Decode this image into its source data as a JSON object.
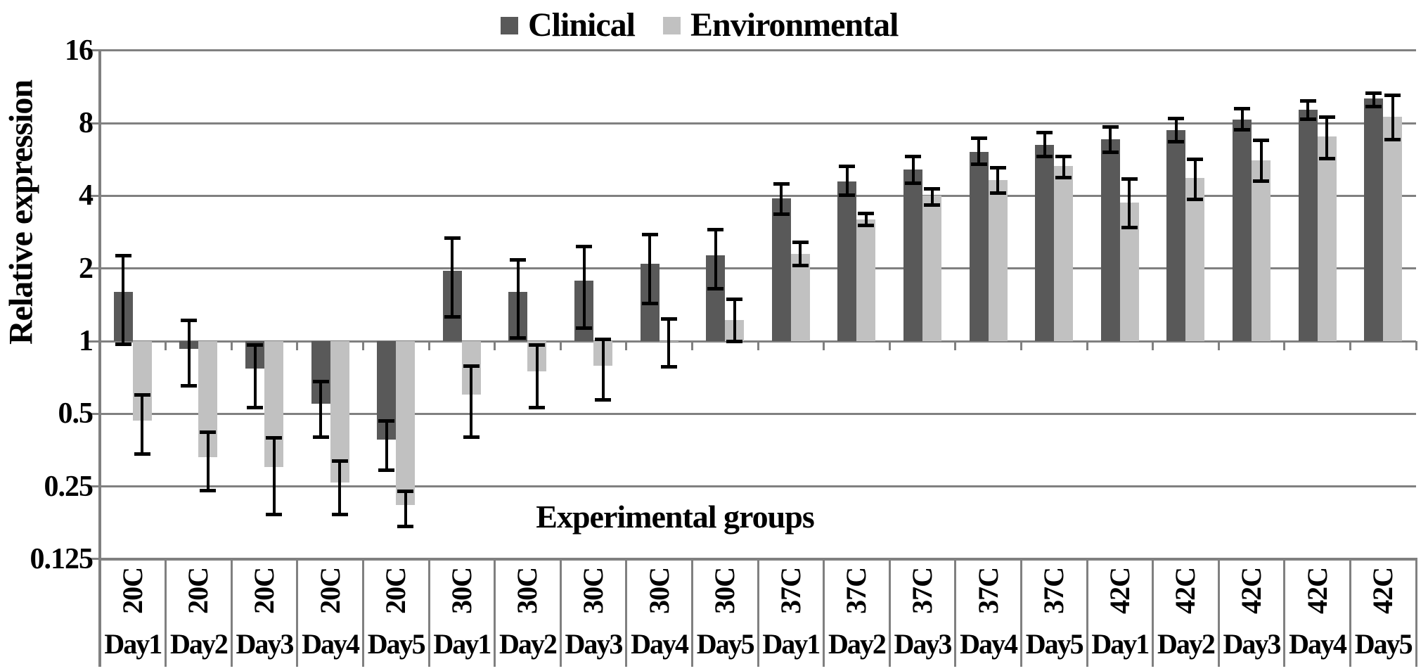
{
  "legend": {
    "items": [
      {
        "label": "Clinical",
        "color": "#595959"
      },
      {
        "label": "Environmental",
        "color": "#c1c1c1"
      }
    ]
  },
  "y_axis": {
    "title": "Relative expression",
    "tick_values": [
      16,
      8,
      4,
      2,
      1,
      0.5,
      0.25,
      0.125
    ],
    "tick_labels": [
      "16",
      "8",
      "4",
      "2",
      "1",
      "0.5",
      "0.25",
      "0.125"
    ]
  },
  "x_axis": {
    "title": "Experimental groups"
  },
  "chart_data": {
    "type": "bar",
    "scale": "log2",
    "title": "",
    "xlabel": "Experimental groups",
    "ylabel": "Relative expression",
    "ylim": [
      0.125,
      16
    ],
    "grid": true,
    "legend_position": "top-center",
    "baseline": 1,
    "categories": [
      {
        "temp": "20C",
        "day": "Day1"
      },
      {
        "temp": "20C",
        "day": "Day2"
      },
      {
        "temp": "20C",
        "day": "Day3"
      },
      {
        "temp": "20C",
        "day": "Day4"
      },
      {
        "temp": "20C",
        "day": "Day5"
      },
      {
        "temp": "30C",
        "day": "Day1"
      },
      {
        "temp": "30C",
        "day": "Day2"
      },
      {
        "temp": "30C",
        "day": "Day3"
      },
      {
        "temp": "30C",
        "day": "Day4"
      },
      {
        "temp": "30C",
        "day": "Day5"
      },
      {
        "temp": "37C",
        "day": "Day1"
      },
      {
        "temp": "37C",
        "day": "Day2"
      },
      {
        "temp": "37C",
        "day": "Day3"
      },
      {
        "temp": "37C",
        "day": "Day4"
      },
      {
        "temp": "37C",
        "day": "Day5"
      },
      {
        "temp": "42C",
        "day": "Day1"
      },
      {
        "temp": "42C",
        "day": "Day2"
      },
      {
        "temp": "42C",
        "day": "Day3"
      },
      {
        "temp": "42C",
        "day": "Day4"
      },
      {
        "temp": "42C",
        "day": "Day5"
      }
    ],
    "series": [
      {
        "name": "Clinical",
        "color": "#595959",
        "values": [
          1.6,
          0.93,
          0.77,
          0.55,
          0.39,
          1.95,
          1.6,
          1.78,
          2.09,
          2.26,
          3.9,
          4.6,
          5.15,
          6.1,
          6.5,
          6.85,
          7.5,
          8.3,
          9.1,
          10.1
        ],
        "error_low": [
          0.97,
          0.65,
          0.53,
          0.4,
          0.29,
          1.26,
          1.03,
          1.13,
          1.43,
          1.64,
          3.35,
          4.0,
          4.5,
          5.4,
          5.8,
          6.05,
          6.7,
          7.5,
          8.3,
          9.35
        ],
        "error_high": [
          2.26,
          1.22,
          0.97,
          0.68,
          0.47,
          2.68,
          2.18,
          2.47,
          2.78,
          2.9,
          4.5,
          5.3,
          5.85,
          6.95,
          7.35,
          7.75,
          8.4,
          9.2,
          9.95,
          10.7
        ]
      },
      {
        "name": "Environmental",
        "color": "#c1c1c1",
        "values": [
          0.47,
          0.33,
          0.3,
          0.26,
          0.21,
          0.6,
          0.75,
          0.79,
          1.0,
          1.22,
          2.3,
          3.2,
          4.0,
          4.65,
          5.3,
          3.75,
          4.73,
          5.6,
          7.05,
          8.5
        ],
        "error_low": [
          0.34,
          0.24,
          0.19,
          0.19,
          0.17,
          0.4,
          0.53,
          0.57,
          0.78,
          0.99,
          2.05,
          3.0,
          3.65,
          4.1,
          4.75,
          2.95,
          3.85,
          4.6,
          5.7,
          6.8
        ],
        "error_high": [
          0.6,
          0.42,
          0.4,
          0.32,
          0.24,
          0.79,
          0.97,
          1.02,
          1.24,
          1.5,
          2.57,
          3.4,
          4.3,
          5.25,
          5.85,
          4.7,
          5.7,
          6.8,
          8.5,
          10.45
        ]
      }
    ]
  },
  "colors": {
    "clinical": "#595959",
    "environmental": "#c1c1c1",
    "gridline": "#808080",
    "axis": "#808080",
    "text": "#000000"
  }
}
